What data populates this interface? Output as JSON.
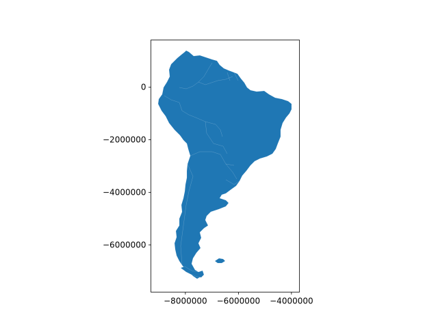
{
  "map": {
    "fill_color": "#1f77b4",
    "border_color": "#ffffff",
    "x_axis": {
      "range": [
        -9300000,
        -3700000
      ],
      "ticks": [
        {
          "value": -8000000,
          "label": "−8000000"
        },
        {
          "value": -6000000,
          "label": "−6000000"
        },
        {
          "value": -4000000,
          "label": "−4000000"
        }
      ]
    },
    "y_axis": {
      "range": [
        -7800000,
        1800000
      ],
      "ticks": [
        {
          "value": 0,
          "label": "0"
        },
        {
          "value": -2000000,
          "label": "−2000000"
        },
        {
          "value": -4000000,
          "label": "−4000000"
        },
        {
          "value": -6000000,
          "label": "−6000000"
        }
      ]
    },
    "regions": [
      "South America"
    ]
  }
}
